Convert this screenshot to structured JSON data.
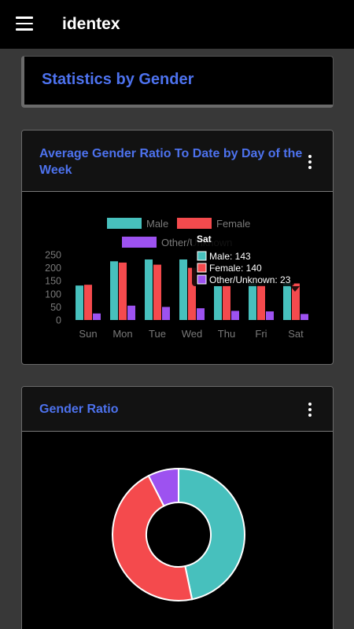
{
  "app": {
    "title": "identex",
    "icons": {
      "menu": "hamburger-menu-icon",
      "more": "more-vertical-icon"
    }
  },
  "page": {
    "title": "Statistics by Gender"
  },
  "colors": {
    "male": "#47c0bd",
    "female": "#f44a4d",
    "other": "#9d52f0",
    "title": "#4d72ee"
  },
  "cards": {
    "weekly": {
      "title": "Average Gender Ratio To Date by Day of the Week"
    },
    "ratio": {
      "title": "Gender Ratio"
    }
  },
  "chart_data": [
    {
      "type": "bar",
      "categories": [
        "Sun",
        "Mon",
        "Tue",
        "Wed",
        "Thu",
        "Fri",
        "Sat"
      ],
      "series": [
        {
          "name": "Male",
          "values": [
            132,
            225,
            232,
            232,
            130,
            140,
            143
          ]
        },
        {
          "name": "Female",
          "values": [
            135,
            220,
            212,
            200,
            132,
            135,
            140
          ]
        },
        {
          "name": "Other/Unknown",
          "values": [
            25,
            55,
            50,
            45,
            35,
            33,
            23
          ]
        }
      ],
      "yticks": [
        0,
        50,
        100,
        150,
        200,
        250
      ],
      "ylim": [
        0,
        250
      ],
      "tooltip": {
        "title": "Sat",
        "lines": [
          "Male: 143",
          "Female: 140",
          "Other/Unknown: 23"
        ]
      }
    },
    {
      "type": "pie",
      "labels": [
        "Male",
        "Female",
        "Other/Unknown"
      ],
      "values": [
        143,
        140,
        23
      ]
    }
  ]
}
